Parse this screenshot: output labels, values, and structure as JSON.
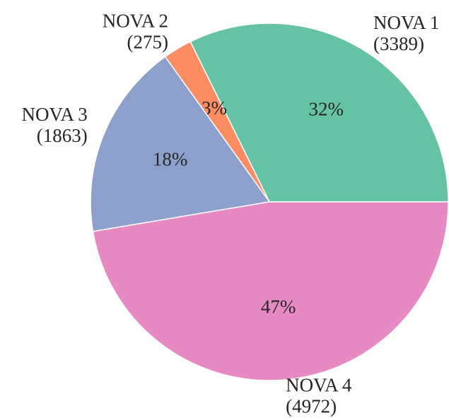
{
  "chart_data": {
    "type": "pie",
    "categories": [
      "NOVA 1",
      "NOVA 2",
      "NOVA 3",
      "NOVA 4"
    ],
    "values": [
      3389,
      275,
      1863,
      4972
    ],
    "value_labels": [
      "(3389)",
      "(275)",
      "(1863)",
      "(4972)"
    ],
    "percent_labels": [
      "32%",
      "3%",
      "18%",
      "47%"
    ],
    "colors": [
      "#66c2a5",
      "#fc8d62",
      "#8da0cb",
      "#e78ac3"
    ]
  }
}
